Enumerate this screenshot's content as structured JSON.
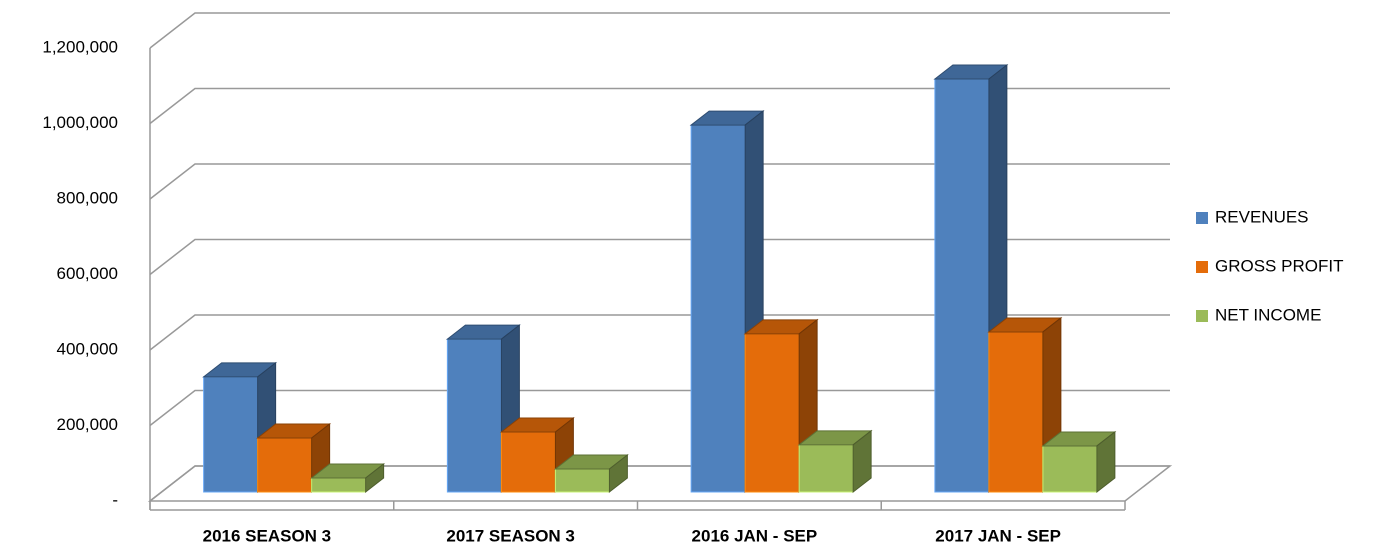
{
  "chart_data": {
    "type": "bar3d",
    "categories": [
      "2016 SEASON 3",
      "2017 SEASON 3",
      "2016 JAN - SEP",
      "2017 JAN - SEP"
    ],
    "series": [
      {
        "name": "REVENUES",
        "color": "#4f81bd",
        "values": [
          305000,
          405000,
          972000,
          1094000
        ]
      },
      {
        "name": "GROSS PROFIT",
        "color": "#e46c0a",
        "values": [
          143000,
          159000,
          419000,
          424000
        ]
      },
      {
        "name": "NET INCOME",
        "color": "#9bbb59",
        "values": [
          37000,
          61000,
          125000,
          122000
        ]
      }
    ],
    "ylim": [
      0,
      1200000
    ],
    "yticks": [
      {
        "value": 0,
        "label": "-"
      },
      {
        "value": 200000,
        "label": "200,000"
      },
      {
        "value": 400000,
        "label": "400,000"
      },
      {
        "value": 600000,
        "label": "600,000"
      },
      {
        "value": 800000,
        "label": "800,000"
      },
      {
        "value": 1000000,
        "label": "1,000,000"
      },
      {
        "value": 1200000,
        "label": "1,200,000"
      }
    ],
    "grid": true,
    "legend": "right"
  }
}
